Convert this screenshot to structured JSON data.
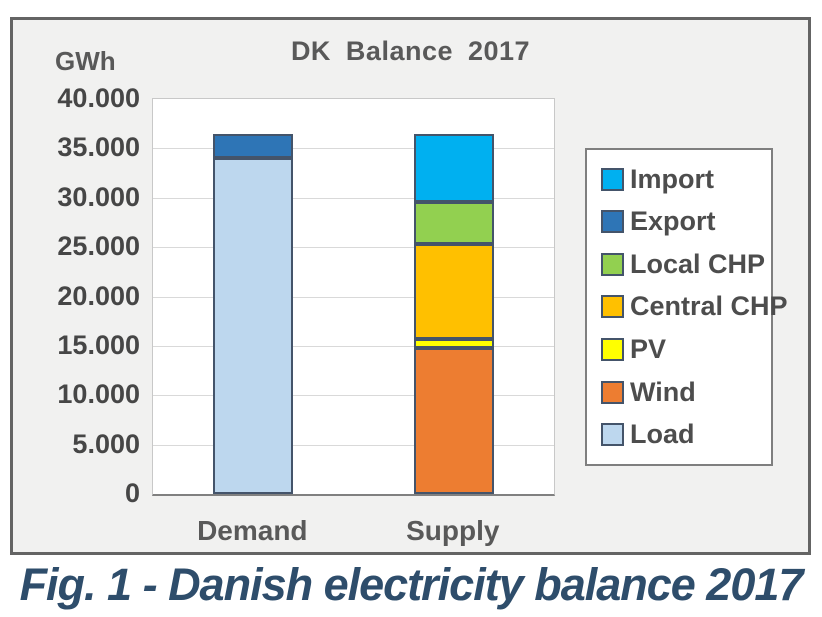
{
  "figure": {
    "title": "DK Balance 2017",
    "axis_unit_label": "GWh",
    "caption": "Fig. 1 - Danish electricity balance 2017"
  },
  "colors": {
    "frame_background": "#f1f1f0",
    "frame_border": "#646464",
    "plot_background": "#ffffff",
    "gridline": "#d9d9d9",
    "axis_line": "#808080",
    "title_text": "#595959",
    "tick_text": "#464646",
    "legend_text": "#4d4d4d",
    "caption_text": "#2e4d6b",
    "segment_border": "#44546a",
    "import": "#00b0f0",
    "export": "#2e75b6",
    "local_chp": "#92d050",
    "central_chp": "#ffc000",
    "pv": "#ffff00",
    "wind": "#ed7d31",
    "load": "#bdd7ee"
  },
  "chart_data": {
    "type": "bar",
    "stacked": true,
    "title": "DK Balance 2017",
    "ylabel": "GWh",
    "unit": "GWh",
    "ylim": [
      0,
      40000
    ],
    "ytick_interval": 5000,
    "grid": true,
    "legend_position": "right",
    "yticks": [
      {
        "value": 40000,
        "label": "40.000"
      },
      {
        "value": 35000,
        "label": "35.000"
      },
      {
        "value": 30000,
        "label": "30.000"
      },
      {
        "value": 25000,
        "label": "25.000"
      },
      {
        "value": 20000,
        "label": "20.000"
      },
      {
        "value": 15000,
        "label": "15.000"
      },
      {
        "value": 10000,
        "label": "10.000"
      },
      {
        "value": 5000,
        "label": "5.000"
      },
      {
        "value": 0,
        "label": "0"
      }
    ],
    "categories": [
      "Demand",
      "Supply"
    ],
    "bars": [
      {
        "category": "Demand",
        "total": 36500,
        "segments": [
          {
            "name": "Load",
            "value": 34000,
            "color": "#bdd7ee"
          },
          {
            "name": "Export",
            "value": 2500,
            "color": "#2e75b6"
          }
        ]
      },
      {
        "category": "Supply",
        "total": 36500,
        "segments": [
          {
            "name": "Wind",
            "value": 14800,
            "color": "#ed7d31"
          },
          {
            "name": "PV",
            "value": 900,
            "color": "#ffff00"
          },
          {
            "name": "Central CHP",
            "value": 9600,
            "color": "#ffc000"
          },
          {
            "name": "Local CHP",
            "value": 4300,
            "color": "#92d050"
          },
          {
            "name": "Import",
            "value": 6900,
            "color": "#00b0f0"
          }
        ]
      }
    ],
    "legend": [
      {
        "label": "Import",
        "color": "#00b0f0"
      },
      {
        "label": "Export",
        "color": "#2e75b6"
      },
      {
        "label": "Local CHP",
        "color": "#92d050"
      },
      {
        "label": "Central CHP",
        "color": "#ffc000"
      },
      {
        "label": "PV",
        "color": "#ffff00"
      },
      {
        "label": "Wind",
        "color": "#ed7d31"
      },
      {
        "label": "Load",
        "color": "#bdd7ee"
      }
    ]
  }
}
